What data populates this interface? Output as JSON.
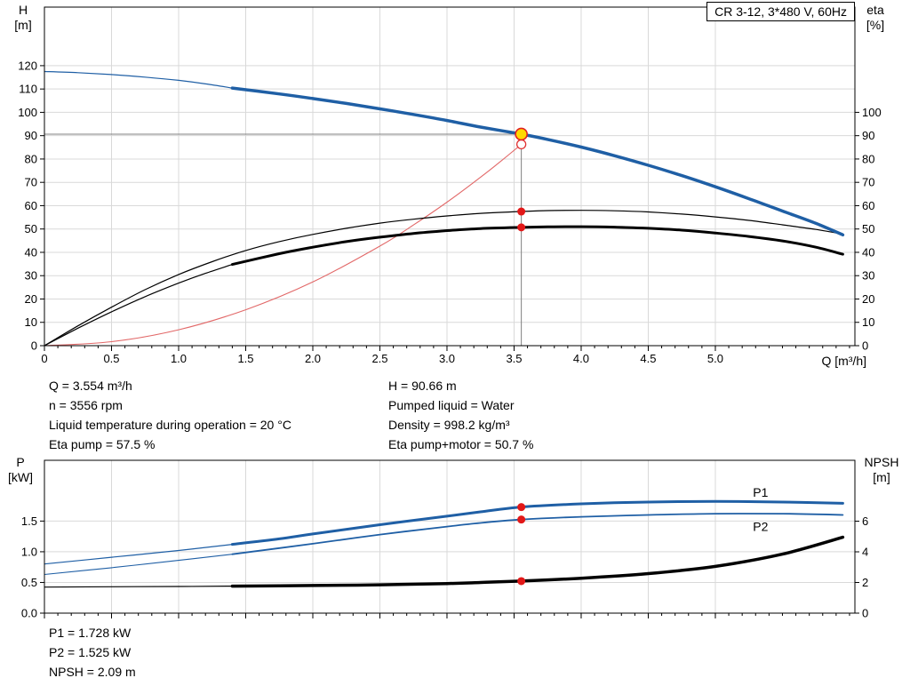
{
  "colors": {
    "curve_blue": "#1f5fa5",
    "curve_black": "#000000",
    "system_curve_red": "#e26868",
    "dot_red": "#e21818",
    "duty_yellow": "#ffd800",
    "duty_ring_red": "#e02020",
    "grid": "#d9d9d9",
    "axis": "#000000",
    "crosshair": "#808080"
  },
  "readouts": {
    "top_left": [
      "Q = 3.554 m³/h",
      "n = 3556 rpm",
      "Liquid temperature during operation = 20 °C",
      "Eta pump = 57.5 %"
    ],
    "top_right": [
      "H = 90.66 m",
      "Pumped liquid = Water",
      "Density = 998.2 kg/m³",
      "Eta pump+motor = 50.7 %"
    ],
    "bottom": [
      "P1 = 1.728 kW",
      "P2 = 1.525 kW",
      "NPSH = 2.09 m"
    ]
  },
  "chart_data": [
    {
      "type": "line",
      "title": "CR 3-12, 3*480 V, 60Hz",
      "xlabel": "Q [m³/h]",
      "ylabel_left_lines": [
        "H",
        "[m]"
      ],
      "ylabel_right_lines": [
        "eta",
        "[%]"
      ],
      "xlim": [
        0,
        6.04
      ],
      "ylim_left": [
        0,
        145.1
      ],
      "ylim_right": [
        0,
        145.1
      ],
      "x_minor_step": 0.1,
      "show_xtick_labels": true,
      "xticks": [
        "0",
        "0.5",
        "1.0",
        "1.5",
        "2.0",
        "2.5",
        "3.0",
        "3.5",
        "4.0",
        "4.5",
        "5.0"
      ],
      "yticks_left": [
        "0",
        "10",
        "20",
        "30",
        "40",
        "50",
        "60",
        "70",
        "80",
        "90",
        "100",
        "110",
        "120"
      ],
      "yticks_right": [
        "0",
        "10",
        "20",
        "30",
        "40",
        "50",
        "60",
        "70",
        "80",
        "90",
        "100"
      ],
      "crosshair": {
        "x": 3.554,
        "y": 90.66
      },
      "series": [
        {
          "name": "system-curve",
          "color": "#e26868",
          "width": 1.1,
          "axis": "left",
          "points": [
            [
              0,
              0
            ],
            [
              0.5,
              1.7
            ],
            [
              1.0,
              6.8
            ],
            [
              1.5,
              15.4
            ],
            [
              2.0,
              27.3
            ],
            [
              2.5,
              42.7
            ],
            [
              2.75,
              51.7
            ],
            [
              3.0,
              61.5
            ],
            [
              3.25,
              72.2
            ],
            [
              3.4,
              79.0
            ],
            [
              3.554,
              86.3
            ]
          ]
        },
        {
          "name": "eta-pump",
          "color": "#000000",
          "width": 1.2,
          "axis": "right",
          "points": [
            [
              0,
              0
            ],
            [
              0.25,
              8.5
            ],
            [
              0.5,
              16.5
            ],
            [
              0.75,
              24.0
            ],
            [
              1.0,
              30.5
            ],
            [
              1.25,
              36.0
            ],
            [
              1.5,
              40.8
            ],
            [
              1.75,
              44.6
            ],
            [
              2.0,
              47.7
            ],
            [
              2.25,
              50.3
            ],
            [
              2.5,
              52.5
            ],
            [
              2.75,
              54.2
            ],
            [
              3.0,
              55.6
            ],
            [
              3.25,
              56.7
            ],
            [
              3.554,
              57.5
            ],
            [
              3.75,
              57.9
            ],
            [
              4.0,
              58.0
            ],
            [
              4.25,
              57.8
            ],
            [
              4.5,
              57.3
            ],
            [
              4.75,
              56.4
            ],
            [
              5.0,
              55.2
            ],
            [
              5.25,
              53.7
            ],
            [
              5.5,
              51.8
            ],
            [
              5.75,
              49.8
            ],
            [
              5.95,
              47.8
            ]
          ]
        },
        {
          "name": "eta-pump-motor-below-range",
          "color": "#000000",
          "width": 1.2,
          "axis": "right",
          "points": [
            [
              0,
              0
            ],
            [
              0.25,
              7.5
            ],
            [
              0.5,
              14.5
            ],
            [
              0.75,
              21.0
            ],
            [
              1.0,
              26.8
            ],
            [
              1.2,
              31.0
            ],
            [
              1.4,
              34.8
            ]
          ]
        },
        {
          "name": "eta-pump-motor",
          "color": "#000000",
          "width": 3,
          "axis": "right",
          "points": [
            [
              1.4,
              34.8
            ],
            [
              1.75,
              39.4
            ],
            [
              2.0,
              42.2
            ],
            [
              2.25,
              44.6
            ],
            [
              2.5,
              46.5
            ],
            [
              2.75,
              48.1
            ],
            [
              3.0,
              49.3
            ],
            [
              3.25,
              50.2
            ],
            [
              3.554,
              50.7
            ],
            [
              3.75,
              50.9
            ],
            [
              4.0,
              51.0
            ],
            [
              4.25,
              50.8
            ],
            [
              4.5,
              50.3
            ],
            [
              4.75,
              49.5
            ],
            [
              5.0,
              48.3
            ],
            [
              5.25,
              46.8
            ],
            [
              5.5,
              44.9
            ],
            [
              5.75,
              42.2
            ],
            [
              5.95,
              39.2
            ]
          ]
        },
        {
          "name": "qh-below-range",
          "color": "#1f5fa5",
          "width": 1.2,
          "axis": "left",
          "points": [
            [
              0,
              117.5
            ],
            [
              0.25,
              117.0
            ],
            [
              0.5,
              116.2
            ],
            [
              0.75,
              115.1
            ],
            [
              1.0,
              113.7
            ],
            [
              1.2,
              112.2
            ],
            [
              1.4,
              110.4
            ]
          ]
        },
        {
          "name": "qh",
          "color": "#1f5fa5",
          "width": 3.5,
          "axis": "left",
          "points": [
            [
              1.4,
              110.4
            ],
            [
              1.75,
              107.9
            ],
            [
              2.0,
              105.9
            ],
            [
              2.25,
              103.8
            ],
            [
              2.5,
              101.5
            ],
            [
              2.75,
              99.1
            ],
            [
              3.0,
              96.5
            ],
            [
              3.25,
              93.7
            ],
            [
              3.554,
              90.66
            ],
            [
              3.75,
              88.4
            ],
            [
              4.0,
              85.1
            ],
            [
              4.25,
              81.4
            ],
            [
              4.5,
              77.3
            ],
            [
              4.75,
              72.9
            ],
            [
              5.0,
              68.1
            ],
            [
              5.25,
              63.0
            ],
            [
              5.5,
              57.7
            ],
            [
              5.75,
              52.4
            ],
            [
              5.95,
              47.5
            ]
          ]
        }
      ],
      "markers": [
        {
          "name": "requested-duty-marker",
          "x": 3.554,
          "y": 86.3,
          "axis": "left",
          "r": 5,
          "fill": "#ffffff",
          "stroke": "#e03030",
          "sw": 1.3,
          "interactable": false
        },
        {
          "name": "eta-pump-dot",
          "x": 3.554,
          "y": 57.5,
          "axis": "right",
          "r": 4.5,
          "fill": "#e21818",
          "sw": 0,
          "interactable": false
        },
        {
          "name": "eta-pump-motor-dot",
          "x": 3.554,
          "y": 50.7,
          "axis": "right",
          "r": 4.5,
          "fill": "#e21818",
          "sw": 0,
          "interactable": false
        },
        {
          "name": "duty-point-marker",
          "x": 3.554,
          "y": 90.66,
          "axis": "left",
          "r": 6.5,
          "fill": "#ffd800",
          "stroke": "#e02020",
          "sw": 1.6,
          "interactable": true
        }
      ],
      "curve_labels": []
    },
    {
      "type": "line",
      "title": "",
      "xlabel": "",
      "ylabel_left_lines": [
        "P",
        "[kW]"
      ],
      "ylabel_right_lines": [
        "NPSH",
        "[m]"
      ],
      "xlim": [
        0,
        6.04
      ],
      "ylim_left": [
        0,
        2.49
      ],
      "ylim_right": [
        0,
        9.97
      ],
      "x_minor_step": 0.1,
      "show_xtick_labels": false,
      "xticks": [
        "0",
        "0.5",
        "1.0",
        "1.5",
        "2.0",
        "2.5",
        "3.0",
        "3.5",
        "4.0",
        "4.5",
        "5.0"
      ],
      "yticks_left": [
        "0.0",
        "0.5",
        "1.0",
        "1.5"
      ],
      "yticks_right": [
        "0",
        "2",
        "4",
        "6"
      ],
      "crosshair": null,
      "series": [
        {
          "name": "npsh-below-range",
          "color": "#000000",
          "width": 1.2,
          "axis": "right",
          "points": [
            [
              0,
              1.7
            ],
            [
              0.5,
              1.72
            ],
            [
              1.0,
              1.74
            ],
            [
              1.4,
              1.76
            ]
          ]
        },
        {
          "name": "npsh",
          "color": "#000000",
          "width": 3.5,
          "axis": "right",
          "points": [
            [
              1.4,
              1.76
            ],
            [
              2.0,
              1.8
            ],
            [
              2.5,
              1.85
            ],
            [
              3.0,
              1.93
            ],
            [
              3.25,
              2.0
            ],
            [
              3.554,
              2.09
            ],
            [
              4.0,
              2.28
            ],
            [
              4.5,
              2.58
            ],
            [
              5.0,
              3.05
            ],
            [
              5.5,
              3.85
            ],
            [
              5.95,
              4.95
            ]
          ]
        },
        {
          "name": "p2-below-range",
          "color": "#1f5fa5",
          "width": 1.1,
          "axis": "left",
          "points": [
            [
              0,
              0.63
            ],
            [
              0.5,
              0.74
            ],
            [
              1.0,
              0.86
            ],
            [
              1.4,
              0.96
            ]
          ]
        },
        {
          "name": "p2",
          "color": "#1f5fa5",
          "width": 1.8,
          "axis": "left",
          "points": [
            [
              1.4,
              0.96
            ],
            [
              2.0,
              1.13
            ],
            [
              2.5,
              1.28
            ],
            [
              3.0,
              1.41
            ],
            [
              3.25,
              1.47
            ],
            [
              3.554,
              1.525
            ],
            [
              4.0,
              1.57
            ],
            [
              4.5,
              1.6
            ],
            [
              5.0,
              1.62
            ],
            [
              5.5,
              1.62
            ],
            [
              5.95,
              1.6
            ]
          ]
        },
        {
          "name": "p1-below-range",
          "color": "#1f5fa5",
          "width": 1.2,
          "axis": "left",
          "points": [
            [
              0,
              0.8
            ],
            [
              0.5,
              0.91
            ],
            [
              1.0,
              1.02
            ],
            [
              1.4,
              1.12
            ]
          ]
        },
        {
          "name": "p1",
          "color": "#1f5fa5",
          "width": 3,
          "axis": "left",
          "points": [
            [
              1.4,
              1.12
            ],
            [
              1.75,
              1.21
            ],
            [
              2.0,
              1.29
            ],
            [
              2.5,
              1.44
            ],
            [
              3.0,
              1.58
            ],
            [
              3.25,
              1.65
            ],
            [
              3.554,
              1.728
            ],
            [
              4.0,
              1.78
            ],
            [
              4.5,
              1.81
            ],
            [
              5.0,
              1.82
            ],
            [
              5.5,
              1.81
            ],
            [
              5.95,
              1.79
            ]
          ]
        }
      ],
      "markers": [
        {
          "name": "p1-dot",
          "x": 3.554,
          "y": 1.728,
          "axis": "left",
          "r": 4.5,
          "fill": "#e21818",
          "sw": 0,
          "interactable": false
        },
        {
          "name": "p2-dot",
          "x": 3.554,
          "y": 1.525,
          "axis": "left",
          "r": 4.5,
          "fill": "#e21818",
          "sw": 0,
          "interactable": false
        },
        {
          "name": "npsh-dot",
          "x": 3.554,
          "y": 2.09,
          "axis": "right",
          "r": 4.5,
          "fill": "#e21818",
          "sw": 0,
          "interactable": false
        }
      ],
      "curve_labels": [
        {
          "text": "P1",
          "x": 5.28,
          "y": 1.97,
          "color": "#1f5fa5"
        },
        {
          "text": "P2",
          "x": 5.28,
          "y": 1.41,
          "color": "#1f5fa5"
        }
      ]
    }
  ]
}
